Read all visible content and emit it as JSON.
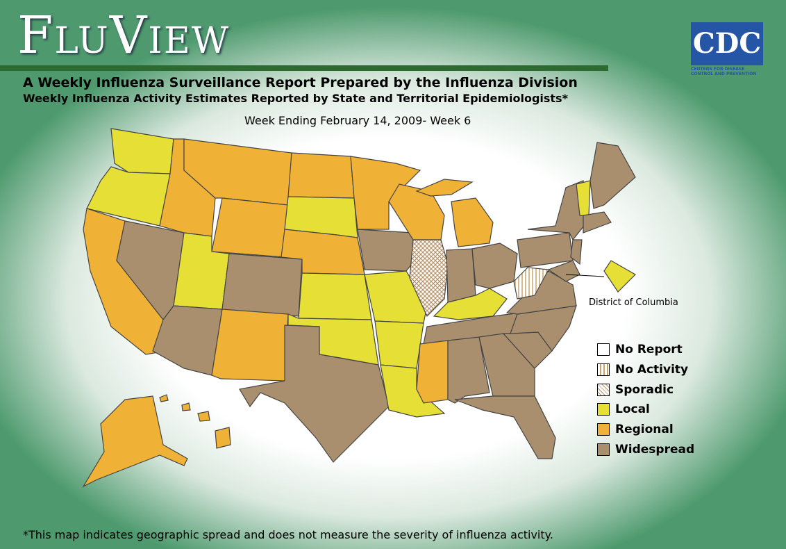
{
  "header": {
    "title": "FluView",
    "subtitle": "A Weekly Influenza Surveillance Report Prepared by the Influenza Division",
    "subtitle2": "Weekly Influenza Activity Estimates Reported by State and Territorial Epidemiologists*",
    "week": "Week Ending February 14, 2009- Week 6"
  },
  "logo": {
    "abbr": "CDC",
    "name": "Centers for Disease Control and Prevention"
  },
  "map": {
    "dc_label": "District of Columbia"
  },
  "legend": [
    "No Report",
    "No Activity",
    "Sporadic",
    "Local",
    "Regional",
    "Widespread"
  ],
  "footnote": "*This map indicates geographic spread and does not measure the severity of influenza activity."
}
